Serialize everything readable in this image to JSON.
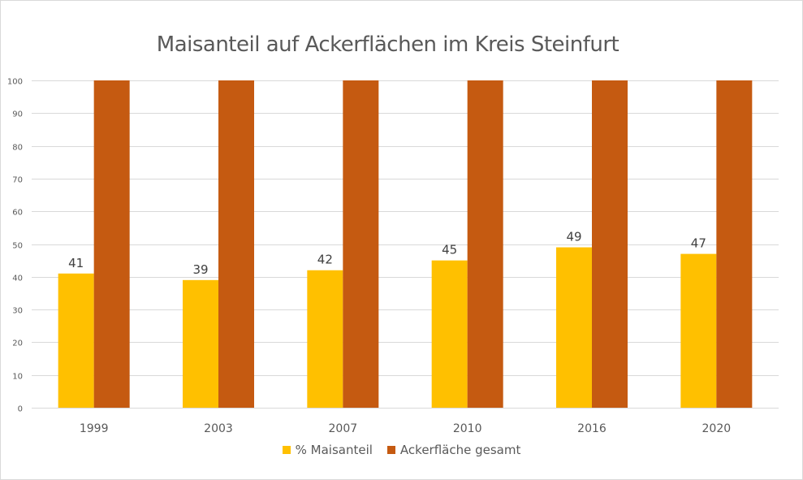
{
  "chart_data": {
    "type": "bar",
    "title": "Maisanteil auf Ackerflächen im Kreis Steinfurt",
    "xlabel": "",
    "ylabel": "",
    "categories": [
      "1999",
      "2003",
      "2007",
      "2010",
      "2016",
      "2020"
    ],
    "series": [
      {
        "name": "% Maisanteil",
        "color": "#FFC000",
        "values": [
          41,
          39,
          42,
          45,
          49,
          47
        ],
        "data_labels": true
      },
      {
        "name": "Ackerfläche gesamt",
        "color": "#C55A11",
        "values": [
          100,
          100,
          100,
          100,
          100,
          100
        ],
        "data_labels": false
      }
    ],
    "ylim": [
      0,
      100
    ],
    "yticks": [
      0,
      10,
      20,
      30,
      40,
      50,
      60,
      70,
      80,
      90,
      100
    ],
    "grid": true,
    "legend_position": "bottom"
  }
}
